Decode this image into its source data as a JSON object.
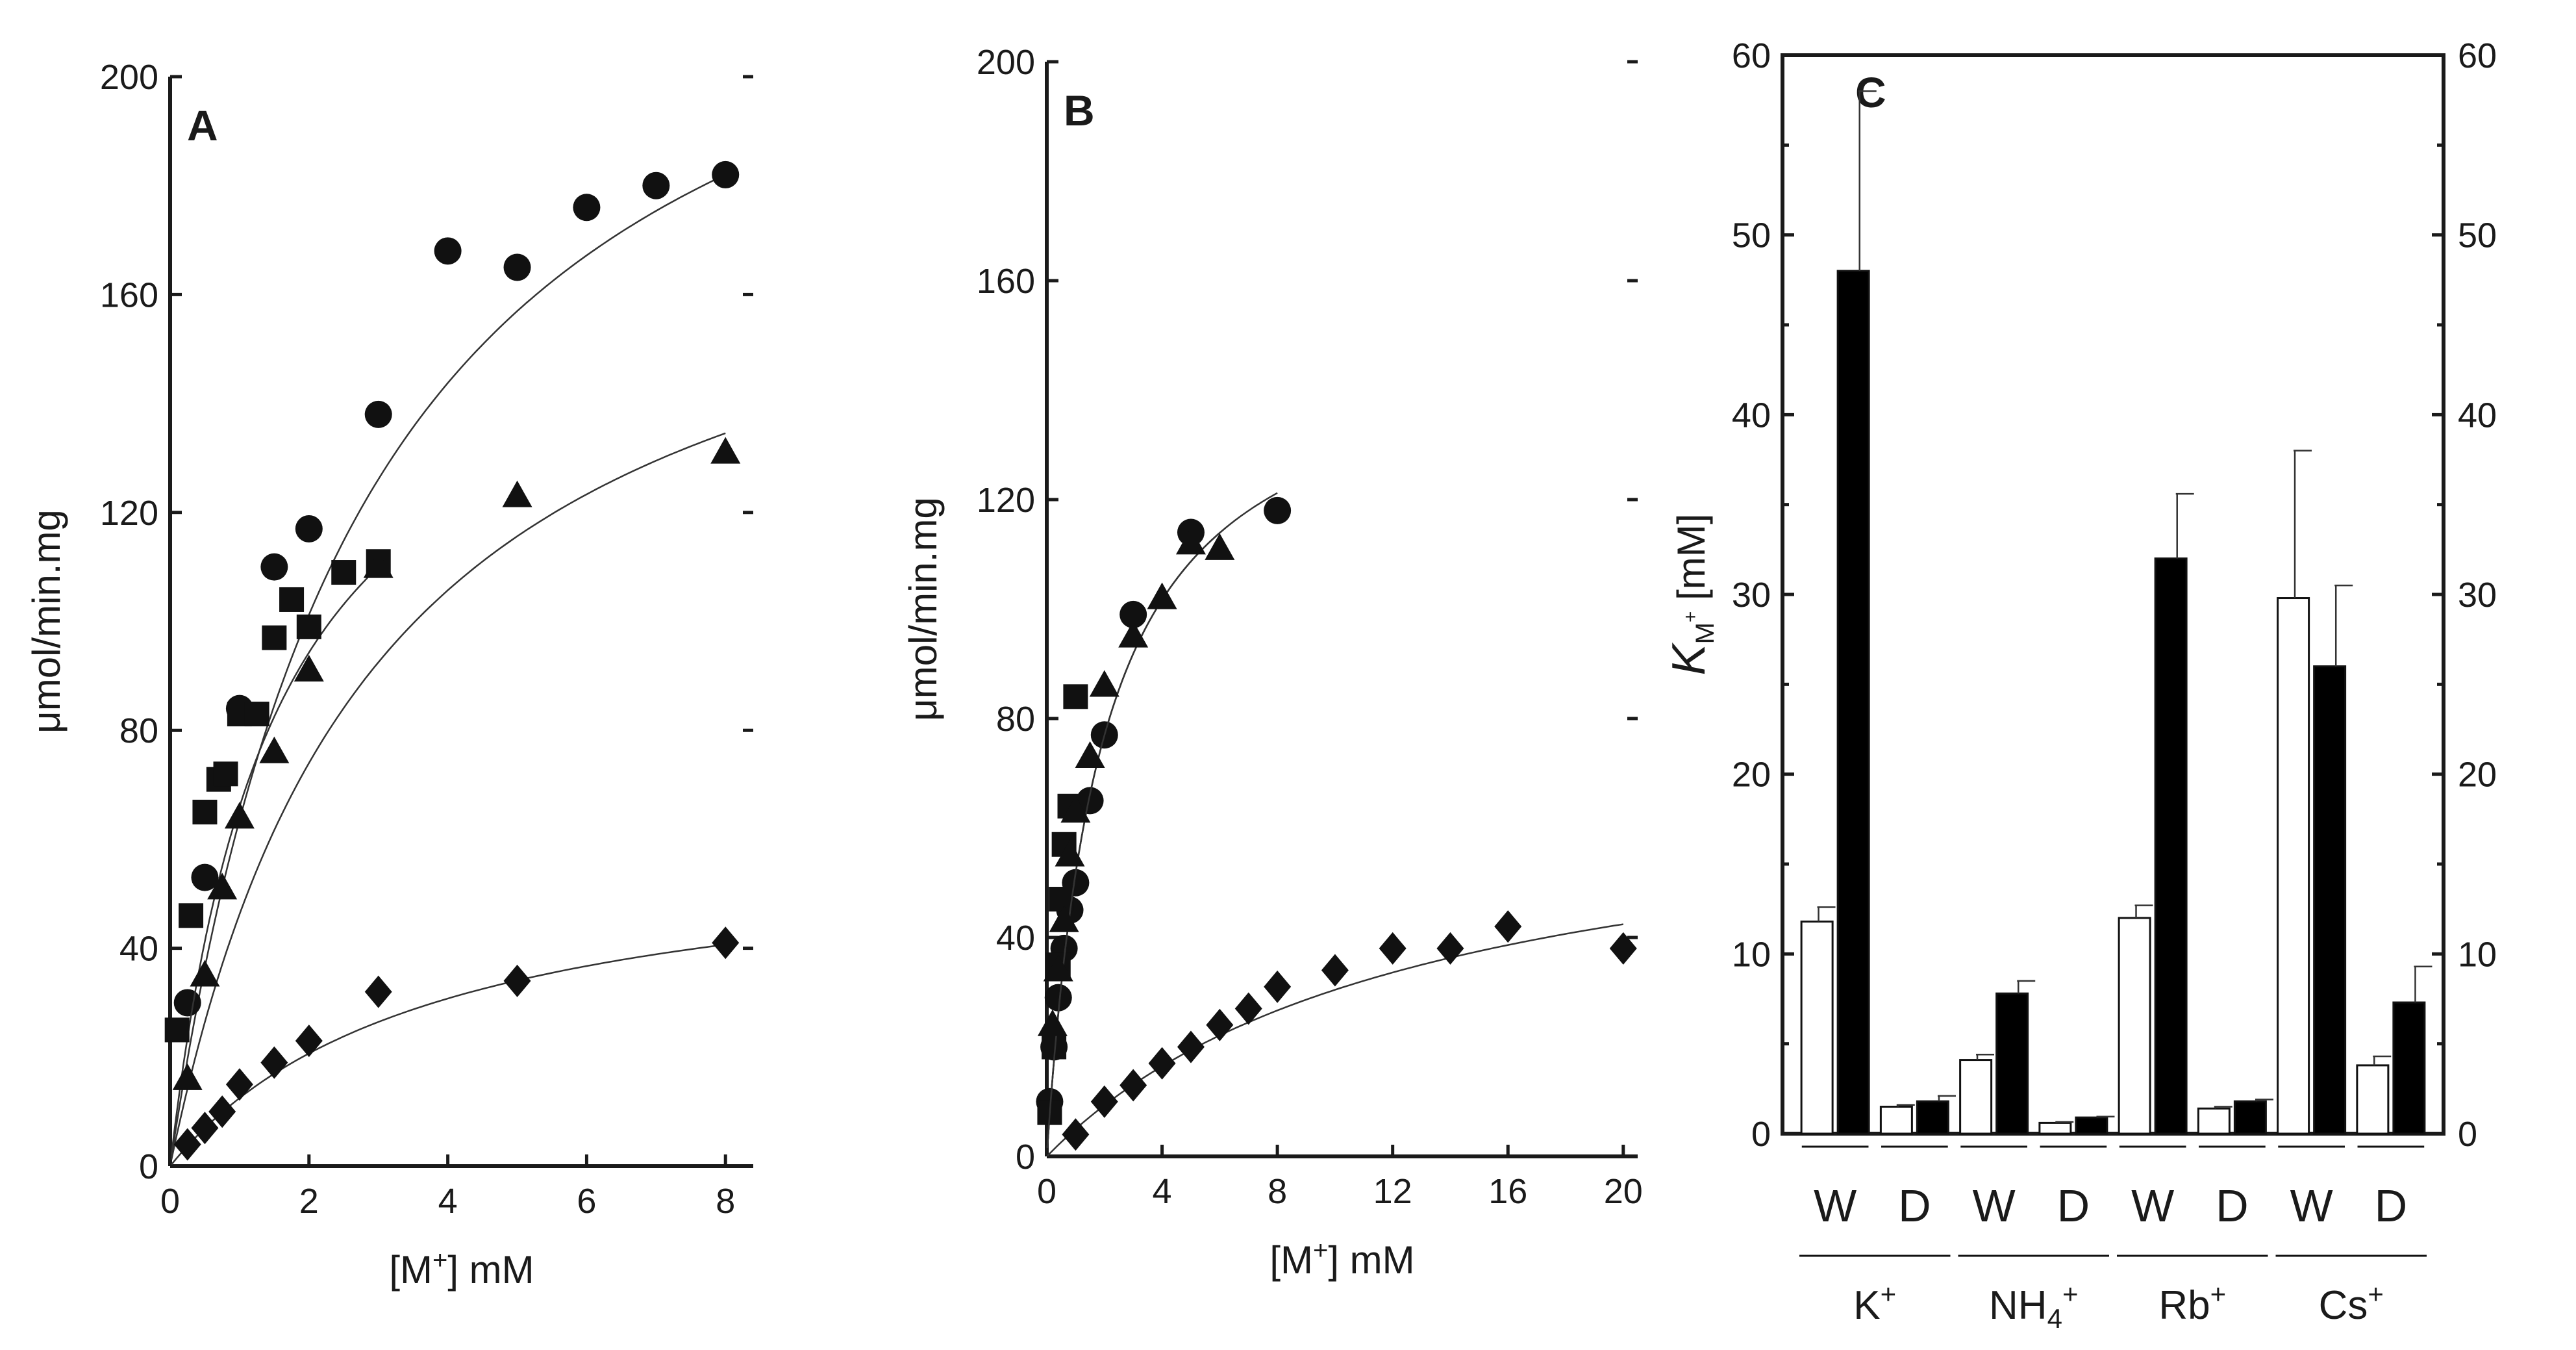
{
  "chart_data": [
    {
      "panel": "A",
      "type": "scatter",
      "xlabel": "[M+] mM",
      "xlabel_main": "[M",
      "xlabel_sup": "+",
      "xlabel_tail": "] mM",
      "ylabel": "μmol/min.mg",
      "xlim": [
        0,
        8.4
      ],
      "ylim": [
        0,
        200
      ],
      "xticks": [
        0,
        2,
        4,
        6,
        8
      ],
      "yticks": [
        0,
        40,
        80,
        120,
        160,
        200
      ],
      "series": [
        {
          "name": "circles",
          "marker": "circle",
          "x": [
            0.25,
            0.5,
            1.0,
            1.5,
            2.0,
            3.0,
            4.0,
            5.0,
            6.0,
            7.0,
            8.0
          ],
          "y": [
            30,
            53,
            84,
            110,
            117,
            138,
            168,
            165,
            176,
            180,
            182
          ],
          "fit": {
            "vmax": 248,
            "km": 2.9
          }
        },
        {
          "name": "squares",
          "marker": "square",
          "x": [
            0.1,
            0.3,
            0.5,
            0.7,
            0.8,
            1.0,
            1.25,
            1.5,
            1.75,
            2.0,
            2.5,
            3.0
          ],
          "y": [
            25,
            46,
            65,
            71,
            72,
            83,
            83,
            97,
            104,
            99,
            109,
            111
          ],
          "fit": {
            "vmax": 165,
            "km": 1.5
          }
        },
        {
          "name": "triangles",
          "marker": "triangle",
          "x": [
            0.25,
            0.5,
            0.75,
            1.0,
            1.5,
            2.0,
            3.0,
            5.0,
            8.0
          ],
          "y": [
            16,
            35,
            51,
            64,
            76,
            91,
            110,
            123,
            131
          ],
          "fit": {
            "vmax": 185,
            "km": 3.0
          }
        },
        {
          "name": "diamonds",
          "marker": "diamond",
          "x": [
            0.25,
            0.5,
            0.75,
            1.0,
            1.5,
            2.0,
            3.0,
            5.0,
            8.0
          ],
          "y": [
            4,
            7,
            10,
            15,
            19,
            23,
            32,
            34,
            41
          ],
          "fit": {
            "vmax": 60,
            "km": 3.8
          }
        }
      ]
    },
    {
      "panel": "B",
      "type": "scatter",
      "xlabel": "[M+] mM",
      "xlabel_main": "[M",
      "xlabel_sup": "+",
      "xlabel_tail": "] mM",
      "ylabel": "μmol/min.mg",
      "xlim": [
        0,
        20.5
      ],
      "ylim": [
        0,
        200
      ],
      "xticks": [
        0,
        4,
        8,
        12,
        16,
        20
      ],
      "yticks": [
        0,
        40,
        80,
        120,
        160,
        200
      ],
      "series": [
        {
          "name": "circles",
          "marker": "circle",
          "x": [
            0.1,
            0.25,
            0.4,
            0.6,
            0.8,
            1.0,
            1.5,
            2.0,
            3.0,
            5.0,
            8.0
          ],
          "y": [
            10,
            20,
            29,
            38,
            45,
            50,
            65,
            77,
            99,
            114,
            118
          ],
          "fit": {
            "vmax": 150,
            "km": 1.9
          }
        },
        {
          "name": "squares",
          "marker": "square",
          "x": [
            0.1,
            0.25,
            0.4,
            0.5,
            0.6,
            0.8,
            1.0
          ],
          "y": [
            8,
            20,
            35,
            47,
            57,
            64,
            84
          ],
          "fit": {
            "vmax": 150,
            "km": 1.9
          }
        },
        {
          "name": "triangles",
          "marker": "triangle",
          "x": [
            0.2,
            0.4,
            0.6,
            0.8,
            1.0,
            1.5,
            2.0,
            3.0,
            4.0,
            5.0,
            6.0
          ],
          "y": [
            24,
            34,
            43,
            55,
            63,
            73,
            86,
            95,
            102,
            112,
            111
          ],
          "fit": {
            "vmax": 150,
            "km": 1.9
          }
        },
        {
          "name": "diamonds",
          "marker": "diamond",
          "x": [
            1,
            2,
            3,
            4,
            5,
            6,
            7,
            8,
            10,
            12,
            14,
            16,
            20
          ],
          "y": [
            4,
            10,
            13,
            17,
            20,
            24,
            27,
            31,
            34,
            38,
            38,
            42,
            38
          ],
          "fit": {
            "vmax": 70,
            "km": 13
          }
        }
      ]
    },
    {
      "panel": "C",
      "type": "bar",
      "ylabel": "K M+ [mM]",
      "ylabel_K": "K",
      "ylabel_sub": "M",
      "ylabel_subsup": "+",
      "ylabel_tail": " [mM]",
      "ylim": [
        0,
        60
      ],
      "yticks": [
        0,
        10,
        20,
        30,
        40,
        50,
        60
      ],
      "ion_groups": [
        {
          "label": "K+",
          "main": "K",
          "sub": "",
          "sup": "+"
        },
        {
          "label": "NH4+",
          "main": "NH",
          "sub": "4",
          "sup": "+"
        },
        {
          "label": "Rb+",
          "main": "Rb",
          "sub": "",
          "sup": "+"
        },
        {
          "label": "Cs+",
          "main": "Cs",
          "sub": "",
          "sup": "+"
        }
      ],
      "subgroup_labels": [
        "W",
        "D",
        "W",
        "D",
        "W",
        "D",
        "W",
        "D"
      ],
      "series": [
        {
          "name": "open bars",
          "fill": "#ffffff",
          "values": [
            11.8,
            1.5,
            4.1,
            0.6,
            12.0,
            1.4,
            29.8,
            3.8
          ],
          "errors": [
            0.8,
            0.1,
            0.3,
            0.05,
            0.7,
            0.1,
            8.2,
            0.5
          ]
        },
        {
          "name": "filled bars",
          "fill": "#000000",
          "values": [
            48.0,
            1.8,
            7.8,
            0.9,
            32.0,
            1.8,
            26.0,
            7.3
          ],
          "errors": [
            10.0,
            0.3,
            0.7,
            0.05,
            3.6,
            0.1,
            4.5,
            2.0
          ]
        }
      ]
    }
  ]
}
